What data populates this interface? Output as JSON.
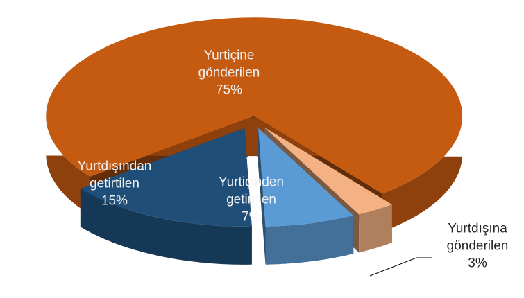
{
  "chart_data": {
    "type": "pie",
    "categories": [
      "Yurtiçine gönderilen",
      "Yurtdışına gönderilen",
      "Yurtiçinden getirtilen",
      "Yurtdışından getirtilen"
    ],
    "values": [
      75,
      3,
      7,
      15
    ],
    "value_labels": [
      "75%",
      "3%",
      "7%",
      "15%"
    ],
    "colors": [
      "#c55a11",
      "#f4b183",
      "#5b9bd5",
      "#1f4e79"
    ]
  }
}
